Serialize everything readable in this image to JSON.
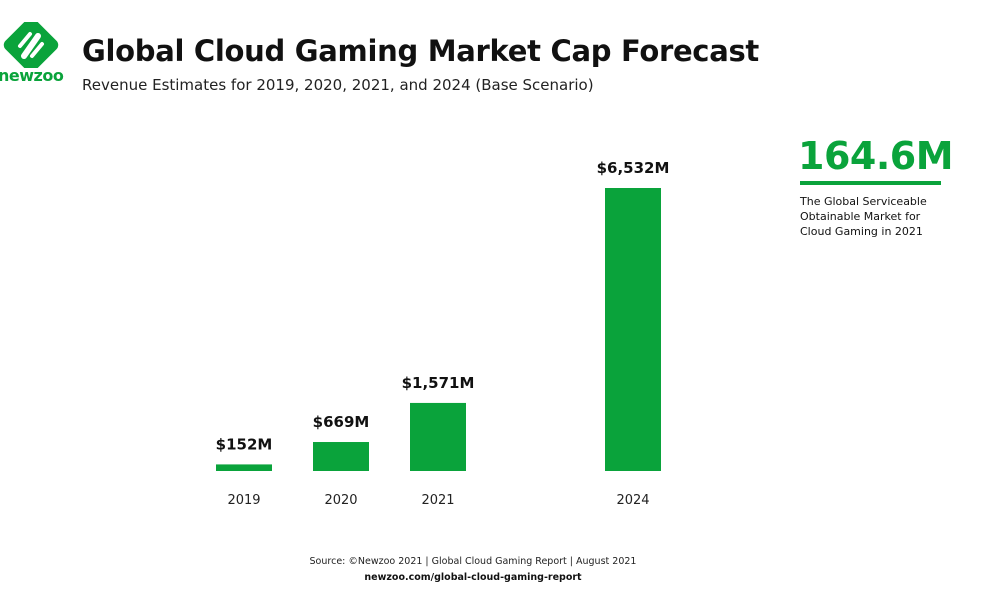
{
  "brand": {
    "name": "newzoo",
    "color": "#0aa33b"
  },
  "header": {
    "title": "Global Cloud Gaming Market Cap Forecast",
    "subtitle": "Revenue Estimates for 2019, 2020, 2021, and 2024 (Base Scenario)"
  },
  "chart_data": {
    "type": "bar",
    "title": "Global Cloud Gaming Market Cap Forecast",
    "subtitle": "Revenue Estimates for 2019, 2020, 2021, and 2024 (Base Scenario)",
    "xlabel": "",
    "ylabel": "",
    "unit": "$M",
    "categories": [
      "2019",
      "2020",
      "2021",
      "2024"
    ],
    "values": [
      152,
      669,
      1571,
      6532
    ],
    "data_labels": [
      "$152M",
      "$669M",
      "$1,571M",
      "$6,532M"
    ],
    "bar_color": "#0aa33b",
    "grid": false,
    "legend": "none"
  },
  "callout": {
    "value": "164.6M",
    "lines": [
      "The Global Serviceable",
      "Obtainable Market for",
      "Cloud Gaming in 2021"
    ]
  },
  "footer": {
    "source": "Source: ©Newzoo 2021 | Global Cloud Gaming Report | August 2021",
    "url": "newzoo.com/global-cloud-gaming-report"
  }
}
